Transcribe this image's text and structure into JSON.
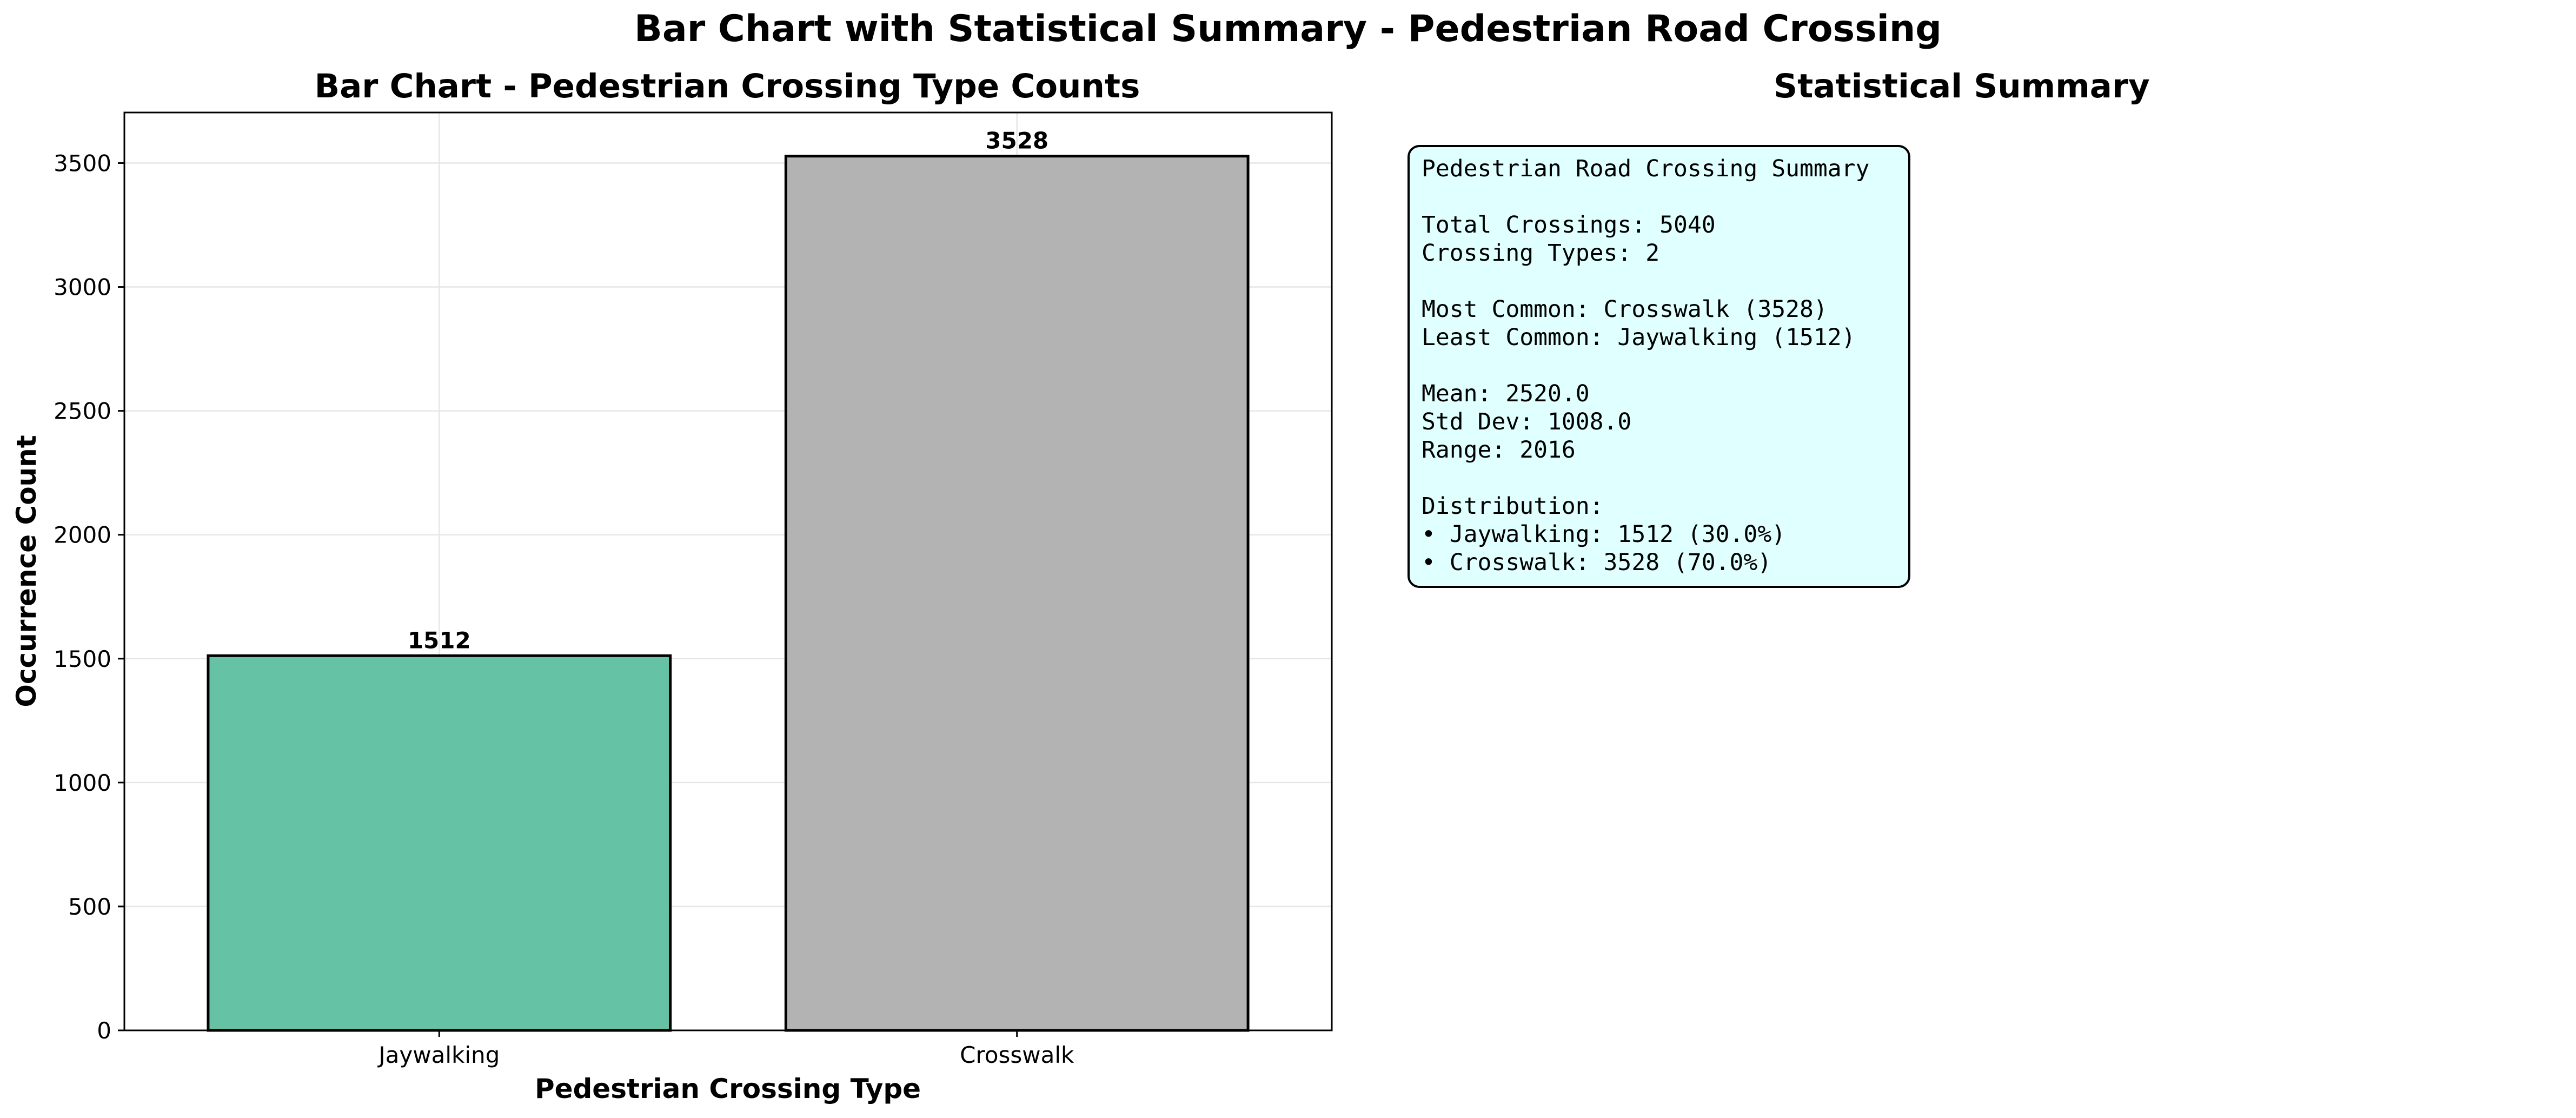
{
  "figure": {
    "suptitle": "Bar Chart with Statistical Summary - Pedestrian Road Crossing"
  },
  "chart_data": {
    "type": "bar",
    "title": "Bar Chart - Pedestrian Crossing Type Counts",
    "xlabel": "Pedestrian Crossing Type",
    "ylabel": "Occurrence Count",
    "categories": [
      "Jaywalking",
      "Crosswalk"
    ],
    "values": [
      1512,
      3528
    ],
    "data_labels": [
      "1512",
      "3528"
    ],
    "colors": [
      "#66c2a5",
      "#b3b3b3"
    ],
    "edge_color": "#000000",
    "ylim": [
      0,
      3704
    ],
    "yticks": [
      0,
      500,
      1000,
      1500,
      2000,
      2500,
      3000,
      3500
    ],
    "ytick_labels": [
      "0",
      "500",
      "1000",
      "1500",
      "2000",
      "2500",
      "3000",
      "3500"
    ],
    "grid": true,
    "legend": "none"
  },
  "summary": {
    "title": "Statistical Summary",
    "heading": "Pedestrian Road Crossing Summary",
    "total": "Total Crossings: 5040",
    "types": "Crossing Types: 2",
    "most_common": "Most Common: Crosswalk (3528)",
    "least_common": "Least Common: Jaywalking (1512)",
    "mean": "Mean: 2520.0",
    "std": "Std Dev: 1008.0",
    "range": "Range: 2016",
    "distribution_label": "Distribution:",
    "dist_jaywalking": "• Jaywalking: 1512 (30.0%)",
    "dist_crosswalk": "• Crosswalk: 3528 (70.0%)",
    "background_color": "#e0ffff"
  }
}
